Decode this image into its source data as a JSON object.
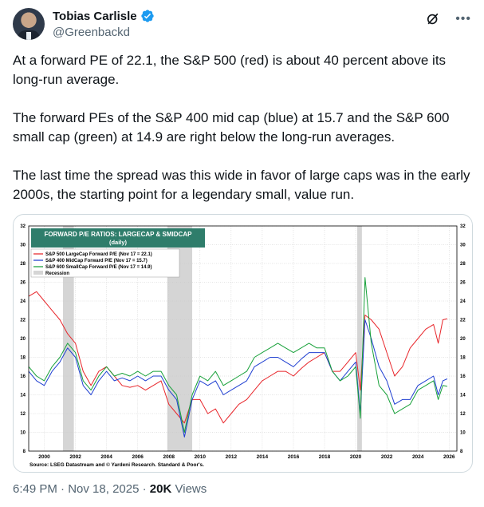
{
  "author": {
    "name": "Tobias Carlisle",
    "handle": "@Greenbackd"
  },
  "icons": {
    "verified": "verified-badge-icon",
    "grok": "grok-icon",
    "more": "more-icon"
  },
  "colors": {
    "verified": "#1d9bf0",
    "sp500": "#e8262b",
    "sp400": "#1f3fd1",
    "sp600": "#18a13a",
    "recession": "#d5d5d5",
    "chart_title_bg": "#2f7d6b"
  },
  "tweet": {
    "paragraphs": [
      "At a forward PE of 22.1, the S&P 500 (red) is about 40 percent above its long-run average.",
      "The forward PEs of the S&P 400 mid cap (blue) at 15.7 and the S&P 600 small cap (green) at 14.9 are right below the long-run averages.",
      "The last time the spread was this wide in favor of large caps was in the early 2000s, the starting point for a legendary small, value run."
    ]
  },
  "footer": {
    "time": "6:49 PM",
    "date": "Nov 18, 2025",
    "views_count": "20K",
    "views_label": "Views"
  },
  "chart_data": {
    "type": "line",
    "title": "FORWARD P/E RATIOS: LARGECAP & SMIDCAP",
    "subtitle": "(daily)",
    "source": "Source: LSEG Datastream and © Yardeni Research. Standard & Poor's.",
    "ylim": [
      8,
      32
    ],
    "yticks": [
      8,
      10,
      12,
      14,
      16,
      18,
      20,
      22,
      24,
      26,
      28,
      30,
      32
    ],
    "xlim": [
      1999,
      2026.5
    ],
    "xticks": [
      2000,
      2002,
      2004,
      2006,
      2008,
      2010,
      2012,
      2014,
      2016,
      2018,
      2020,
      2022,
      2024,
      2026
    ],
    "grid": true,
    "legend_placement": "top-left",
    "recessions": [
      [
        2001.2,
        2001.9
      ],
      [
        2007.9,
        2009.5
      ],
      [
        2020.1,
        2020.4
      ]
    ],
    "legend": [
      {
        "label": "S&P 500 LargeCap Forward P/E (Nov 17 = 22.1)",
        "color": "#e8262b"
      },
      {
        "label": "S&P 400 MidCap Forward P/E (Nov 17 = 15.7)",
        "color": "#1f3fd1"
      },
      {
        "label": "S&P 600 SmallCap Forward P/E (Nov 17 = 14.9)",
        "color": "#18a13a"
      },
      {
        "label": "Recession",
        "color": "#d5d5d5"
      }
    ],
    "series": [
      {
        "name": "S&P 500 LargeCap Forward P/E",
        "color": "#e8262b",
        "x": [
          1999.0,
          1999.5,
          2000.0,
          2000.5,
          2001.0,
          2001.5,
          2002.0,
          2002.5,
          2003.0,
          2003.5,
          2004.0,
          2004.5,
          2005.0,
          2005.5,
          2006.0,
          2006.5,
          2007.0,
          2007.5,
          2008.0,
          2008.5,
          2009.0,
          2009.5,
          2010.0,
          2010.5,
          2011.0,
          2011.5,
          2012.0,
          2012.5,
          2013.0,
          2013.5,
          2014.0,
          2014.5,
          2015.0,
          2015.5,
          2016.0,
          2016.5,
          2017.0,
          2017.5,
          2018.0,
          2018.5,
          2019.0,
          2019.5,
          2020.0,
          2020.3,
          2020.6,
          2021.0,
          2021.5,
          2022.0,
          2022.5,
          2023.0,
          2023.5,
          2024.0,
          2024.5,
          2025.0,
          2025.3,
          2025.6,
          2025.88
        ],
        "y": [
          24.5,
          25.0,
          24.0,
          23.0,
          22.0,
          20.5,
          19.5,
          16.5,
          15.0,
          16.5,
          17.0,
          16.0,
          15.0,
          14.8,
          15.0,
          14.5,
          15.0,
          15.5,
          13.0,
          12.0,
          11.0,
          13.5,
          13.5,
          12.0,
          12.5,
          11.0,
          12.0,
          13.0,
          13.5,
          14.5,
          15.5,
          16.0,
          16.5,
          16.5,
          16.0,
          16.8,
          17.5,
          18.0,
          18.5,
          16.5,
          16.5,
          17.5,
          18.5,
          14.5,
          22.5,
          22.0,
          21.0,
          18.5,
          16.0,
          17.0,
          19.0,
          20.0,
          21.0,
          21.5,
          19.5,
          22.0,
          22.1
        ]
      },
      {
        "name": "S&P 400 MidCap Forward P/E",
        "color": "#1f3fd1",
        "x": [
          1999.0,
          1999.5,
          2000.0,
          2000.5,
          2001.0,
          2001.5,
          2002.0,
          2002.5,
          2003.0,
          2003.5,
          2004.0,
          2004.5,
          2005.0,
          2005.5,
          2006.0,
          2006.5,
          2007.0,
          2007.5,
          2008.0,
          2008.5,
          2009.0,
          2009.5,
          2010.0,
          2010.5,
          2011.0,
          2011.5,
          2012.0,
          2012.5,
          2013.0,
          2013.5,
          2014.0,
          2014.5,
          2015.0,
          2015.5,
          2016.0,
          2016.5,
          2017.0,
          2017.5,
          2018.0,
          2018.5,
          2019.0,
          2019.5,
          2020.0,
          2020.3,
          2020.6,
          2021.0,
          2021.5,
          2022.0,
          2022.5,
          2023.0,
          2023.5,
          2024.0,
          2024.5,
          2025.0,
          2025.3,
          2025.6,
          2025.88
        ],
        "y": [
          16.5,
          15.5,
          15.0,
          16.5,
          17.5,
          19.0,
          18.0,
          15.0,
          14.0,
          15.5,
          16.5,
          15.5,
          15.8,
          15.5,
          16.0,
          15.5,
          16.0,
          16.0,
          14.5,
          13.5,
          9.5,
          13.5,
          15.5,
          15.0,
          15.5,
          14.0,
          14.5,
          15.0,
          15.5,
          17.0,
          17.5,
          18.0,
          18.0,
          17.5,
          17.0,
          17.8,
          18.5,
          18.5,
          18.5,
          16.5,
          15.5,
          16.5,
          17.5,
          12.0,
          22.0,
          20.0,
          17.0,
          15.5,
          13.0,
          13.5,
          13.5,
          15.0,
          15.5,
          16.0,
          14.0,
          15.5,
          15.7
        ]
      },
      {
        "name": "S&P 600 SmallCap Forward P/E",
        "color": "#18a13a",
        "x": [
          1999.0,
          1999.5,
          2000.0,
          2000.5,
          2001.0,
          2001.5,
          2002.0,
          2002.5,
          2003.0,
          2003.5,
          2004.0,
          2004.5,
          2005.0,
          2005.5,
          2006.0,
          2006.5,
          2007.0,
          2007.5,
          2008.0,
          2008.5,
          2009.0,
          2009.5,
          2010.0,
          2010.5,
          2011.0,
          2011.5,
          2012.0,
          2012.5,
          2013.0,
          2013.5,
          2014.0,
          2014.5,
          2015.0,
          2015.5,
          2016.0,
          2016.5,
          2017.0,
          2017.5,
          2018.0,
          2018.5,
          2019.0,
          2019.5,
          2020.0,
          2020.3,
          2020.6,
          2021.0,
          2021.5,
          2022.0,
          2022.5,
          2023.0,
          2023.5,
          2024.0,
          2024.5,
          2025.0,
          2025.3,
          2025.6,
          2025.88
        ],
        "y": [
          17.0,
          16.0,
          15.5,
          17.0,
          18.0,
          19.5,
          18.5,
          15.5,
          14.5,
          16.0,
          17.0,
          16.0,
          16.3,
          16.0,
          16.5,
          16.0,
          16.5,
          16.5,
          15.0,
          14.0,
          10.0,
          14.0,
          16.0,
          15.5,
          16.5,
          15.0,
          15.5,
          16.0,
          16.5,
          18.0,
          18.5,
          19.0,
          19.5,
          19.0,
          18.5,
          19.0,
          19.5,
          19.0,
          19.0,
          16.5,
          15.5,
          16.0,
          17.0,
          11.5,
          26.5,
          19.5,
          15.0,
          14.0,
          12.0,
          12.5,
          13.0,
          14.5,
          15.0,
          15.5,
          13.5,
          15.0,
          14.9
        ]
      }
    ]
  }
}
